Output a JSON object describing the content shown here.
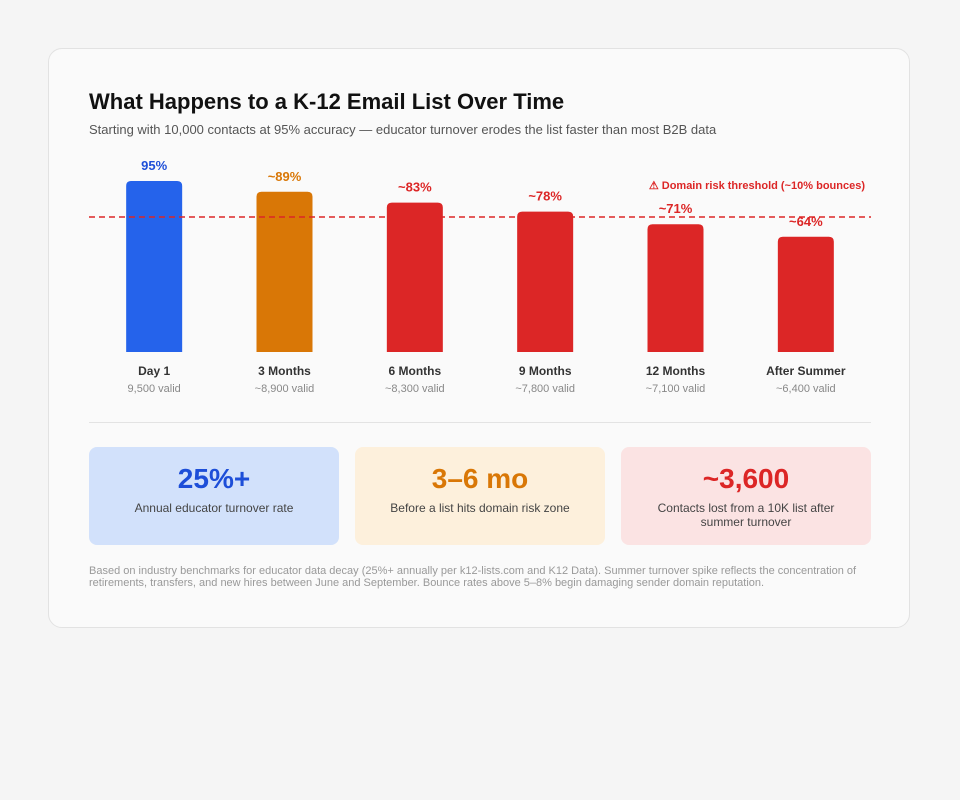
{
  "title": "What Happens to a K-12 Email List Over Time",
  "subtitle": "Starting with 10,000 contacts at 95% accuracy — educator turnover erodes the list faster than most B2B data",
  "chart_data": {
    "type": "bar",
    "categories": [
      "Day 1",
      "3 Months",
      "6 Months",
      "9 Months",
      "12 Months",
      "After Summer"
    ],
    "values": [
      95,
      89,
      83,
      78,
      71,
      64
    ],
    "value_labels": [
      "95%",
      "~89%",
      "~83%",
      "~78%",
      "~71%",
      "~64%"
    ],
    "sublabels": [
      "9,500 valid",
      "~8,900 valid",
      "~8,300 valid",
      "~7,800 valid",
      "~7,100 valid",
      "~6,400 valid"
    ],
    "colors": [
      "#2563eb",
      "#d97706",
      "#dc2626",
      "#dc2626",
      "#dc2626",
      "#dc2626"
    ],
    "label_colors": [
      "#1d4ed8",
      "#d97706",
      "#dc2626",
      "#dc2626",
      "#dc2626",
      "#dc2626"
    ],
    "ylim": [
      0,
      100
    ],
    "threshold": {
      "value": 75,
      "label": "⚠ Domain risk threshold (~10% bounces)",
      "color": "#dc2626"
    }
  },
  "stats": [
    {
      "value": "25%+",
      "label": "Annual educator turnover rate",
      "bg": "#d2e1fb",
      "color": "#1d4ed8"
    },
    {
      "value": "3–6 mo",
      "label": "Before a list hits domain risk zone",
      "bg": "#fdf0dc",
      "color": "#d97706"
    },
    {
      "value": "~3,600",
      "label": "Contacts lost from a 10K list after summer turnover",
      "bg": "#fbe3e3",
      "color": "#dc2626"
    }
  ],
  "footnote": "Based on industry benchmarks for educator data decay (25%+ annually per k12-lists.com and K12 Data). Summer turnover spike reflects the concentration of retirements, transfers, and new hires between June and September. Bounce rates above 5–8% begin damaging sender domain reputation."
}
